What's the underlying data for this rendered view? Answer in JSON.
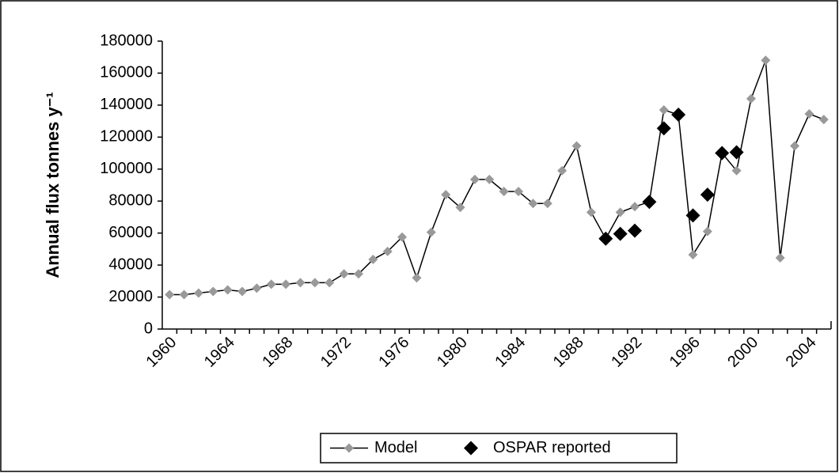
{
  "chart_data": {
    "type": "line",
    "y_label": "Annual flux tonnes y⁻¹",
    "categories": [
      "1960",
      null,
      null,
      null,
      "1964",
      null,
      null,
      null,
      "1968",
      null,
      null,
      null,
      "1972",
      null,
      null,
      null,
      "1976",
      null,
      null,
      null,
      "1980",
      null,
      null,
      null,
      "1984",
      null,
      null,
      null,
      "1988",
      null,
      null,
      null,
      "1992",
      null,
      null,
      null,
      "1996",
      null,
      null,
      null,
      "2000",
      null,
      null,
      null,
      "2004",
      null
    ],
    "series": [
      {
        "name": "Model",
        "color": "#999999",
        "values": [
          21500,
          21500,
          22500,
          23500,
          24500,
          23500,
          25500,
          28000,
          28000,
          29000,
          29000,
          29000,
          34500,
          34500,
          43500,
          48500,
          57500,
          32000,
          60500,
          84000,
          76000,
          93500,
          93500,
          86000,
          86000,
          78500,
          78500,
          99000,
          114500,
          73000,
          56500,
          73000,
          76500,
          79500,
          137000,
          134000,
          46500,
          61000,
          110000,
          99000,
          144000,
          168000,
          44500,
          114500,
          134500,
          131000
        ]
      },
      {
        "name": "OSPAR reported",
        "color": "#000000",
        "values": [
          null,
          null,
          null,
          null,
          null,
          null,
          null,
          null,
          null,
          null,
          null,
          null,
          null,
          null,
          null,
          null,
          null,
          null,
          null,
          null,
          null,
          null,
          null,
          null,
          null,
          null,
          null,
          null,
          null,
          null,
          56500,
          59500,
          61500,
          79500,
          125500,
          134000,
          71000,
          84000,
          110000,
          110500,
          null,
          null,
          null,
          null,
          null,
          null
        ]
      }
    ],
    "ylim": [
      0,
      180000
    ],
    "yticks": [
      0,
      20000,
      40000,
      60000,
      80000,
      100000,
      120000,
      140000,
      160000,
      180000
    ],
    "legend": "bottom"
  }
}
